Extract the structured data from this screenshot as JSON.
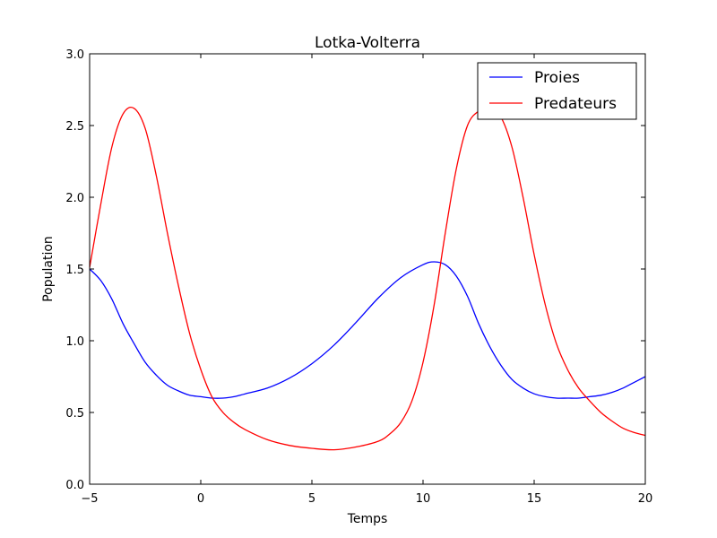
{
  "chart_data": {
    "type": "line",
    "title": "Lotka-Volterra",
    "xlabel": "Temps",
    "ylabel": "Population",
    "xlim": [
      -5,
      20
    ],
    "ylim": [
      0,
      3
    ],
    "grid": false,
    "legend_position": "top-right",
    "x_ticks": [
      "−5",
      "0",
      "5",
      "10",
      "15",
      "20"
    ],
    "y_ticks": [
      "0.0",
      "0.5",
      "1.0",
      "1.5",
      "2.0",
      "2.5",
      "3.0"
    ],
    "x_tick_values": [
      -5,
      0,
      5,
      10,
      15,
      20
    ],
    "y_tick_values": [
      0,
      0.5,
      1,
      1.5,
      2,
      2.5,
      3
    ],
    "series": [
      {
        "name": "Proies",
        "color": "#0000ff",
        "x": [
          -5,
          -4.5,
          -4,
          -3.5,
          -3,
          -2.5,
          -2,
          -1.5,
          -1,
          -0.5,
          0,
          0.5,
          1,
          1.5,
          2,
          3,
          4,
          5,
          6,
          7,
          8,
          9,
          10,
          10.5,
          11,
          11.5,
          12,
          12.5,
          13,
          13.5,
          14,
          14.5,
          15,
          15.5,
          16,
          16.5,
          17,
          17.5,
          18,
          18.5,
          19,
          19.5,
          20
        ],
        "y": [
          1.5,
          1.42,
          1.29,
          1.12,
          0.98,
          0.85,
          0.76,
          0.69,
          0.65,
          0.62,
          0.61,
          0.6,
          0.6,
          0.61,
          0.63,
          0.67,
          0.74,
          0.84,
          0.97,
          1.13,
          1.3,
          1.44,
          1.53,
          1.55,
          1.53,
          1.45,
          1.31,
          1.12,
          0.96,
          0.83,
          0.73,
          0.67,
          0.63,
          0.61,
          0.6,
          0.6,
          0.6,
          0.61,
          0.62,
          0.64,
          0.67,
          0.71,
          0.75
        ]
      },
      {
        "name": "Predateurs",
        "color": "#ff0000",
        "x": [
          -5,
          -4.5,
          -4,
          -3.5,
          -3,
          -2.5,
          -2,
          -1.5,
          -1,
          -0.5,
          0,
          0.5,
          1,
          1.5,
          2,
          3,
          4,
          5,
          6,
          7,
          8,
          8.5,
          9,
          9.5,
          10,
          10.5,
          11,
          11.5,
          12,
          12.5,
          13,
          13.5,
          14,
          14.5,
          15,
          15.5,
          16,
          16.5,
          17,
          17.5,
          18,
          18.5,
          19,
          19.5,
          20
        ],
        "y": [
          1.51,
          1.95,
          2.35,
          2.58,
          2.62,
          2.48,
          2.15,
          1.75,
          1.38,
          1.05,
          0.8,
          0.61,
          0.5,
          0.43,
          0.38,
          0.31,
          0.27,
          0.25,
          0.24,
          0.26,
          0.3,
          0.35,
          0.43,
          0.58,
          0.85,
          1.25,
          1.75,
          2.2,
          2.5,
          2.6,
          2.62,
          2.56,
          2.35,
          2.0,
          1.6,
          1.25,
          0.98,
          0.8,
          0.67,
          0.58,
          0.5,
          0.44,
          0.39,
          0.36,
          0.34
        ]
      }
    ]
  }
}
